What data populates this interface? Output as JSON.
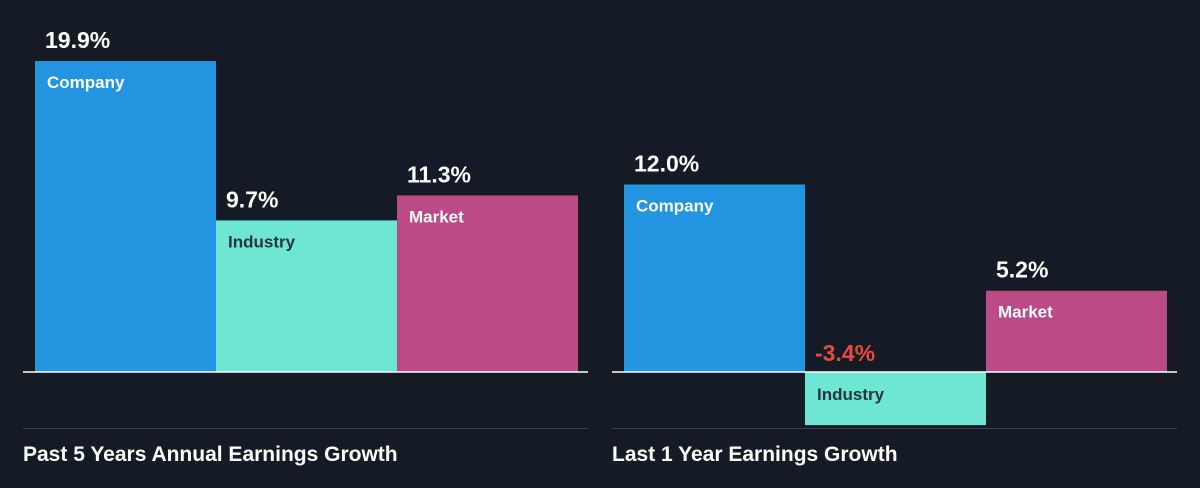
{
  "colors": {
    "background": "#151b24",
    "company": "#2394e0",
    "industry": "#6de6d3",
    "market": "#bc4a87",
    "negative_value": "#e84a43",
    "value_text": "#ffffff",
    "company_label_text": "#ffffff",
    "industry_label_text": "#2a3340",
    "market_label_text": "#ffffff",
    "baseline": "#ffffff",
    "divider": "#3a414c"
  },
  "chart_data": [
    {
      "type": "bar",
      "title": "Past 5 Years Annual Earnings Growth",
      "unit": "%",
      "categories": [
        "Company",
        "Industry",
        "Market"
      ],
      "values": [
        19.9,
        9.7,
        11.3
      ],
      "value_labels": [
        "19.9%",
        "9.7%",
        "11.3%"
      ]
    },
    {
      "type": "bar",
      "title": "Last 1 Year Earnings Growth",
      "unit": "%",
      "categories": [
        "Company",
        "Industry",
        "Market"
      ],
      "values": [
        12.0,
        -3.4,
        5.2
      ],
      "value_labels": [
        "12.0%",
        "-3.4%",
        "5.2%"
      ]
    }
  ]
}
